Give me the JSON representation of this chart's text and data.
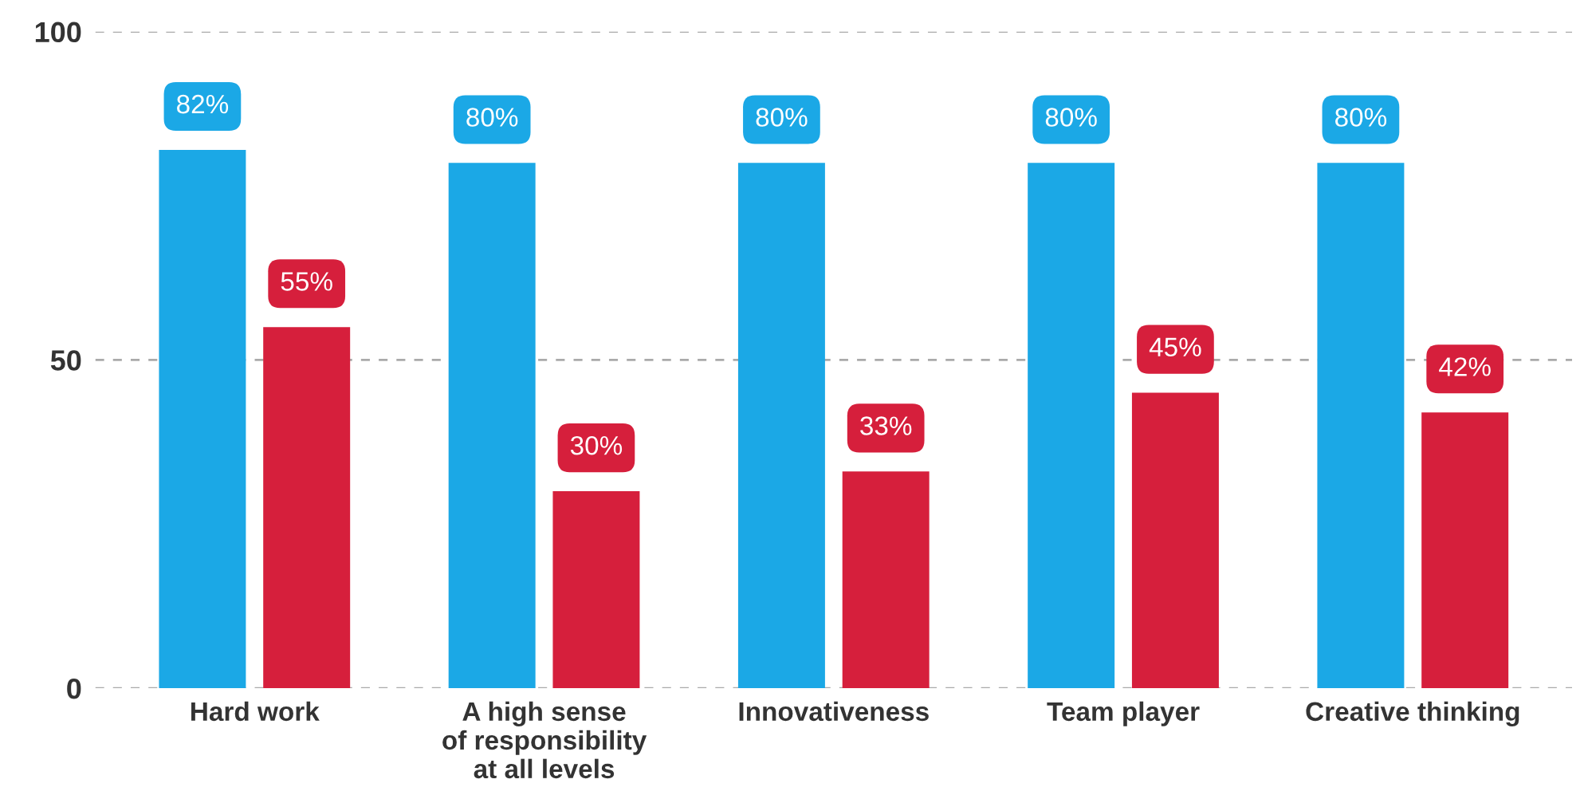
{
  "chart_data": {
    "type": "bar",
    "categories": [
      "Hard work",
      "A high sense\nof responsibility\nat all levels",
      "Innovativeness",
      "Team player",
      "Creative thinking"
    ],
    "series": [
      {
        "color": "#1ba8e6",
        "values": [
          82,
          80,
          80,
          80,
          80
        ],
        "value_labels": [
          "82%",
          "80%",
          "80%",
          "80%",
          "80%"
        ]
      },
      {
        "color": "#d61f3c",
        "values": [
          55,
          30,
          33,
          45,
          42
        ],
        "value_labels": [
          "55%",
          "30%",
          "33%",
          "45%",
          "42%"
        ]
      }
    ],
    "ylim": [
      0,
      100
    ],
    "yticks": [
      0,
      50,
      100
    ],
    "grid": "y",
    "legend": false
  }
}
